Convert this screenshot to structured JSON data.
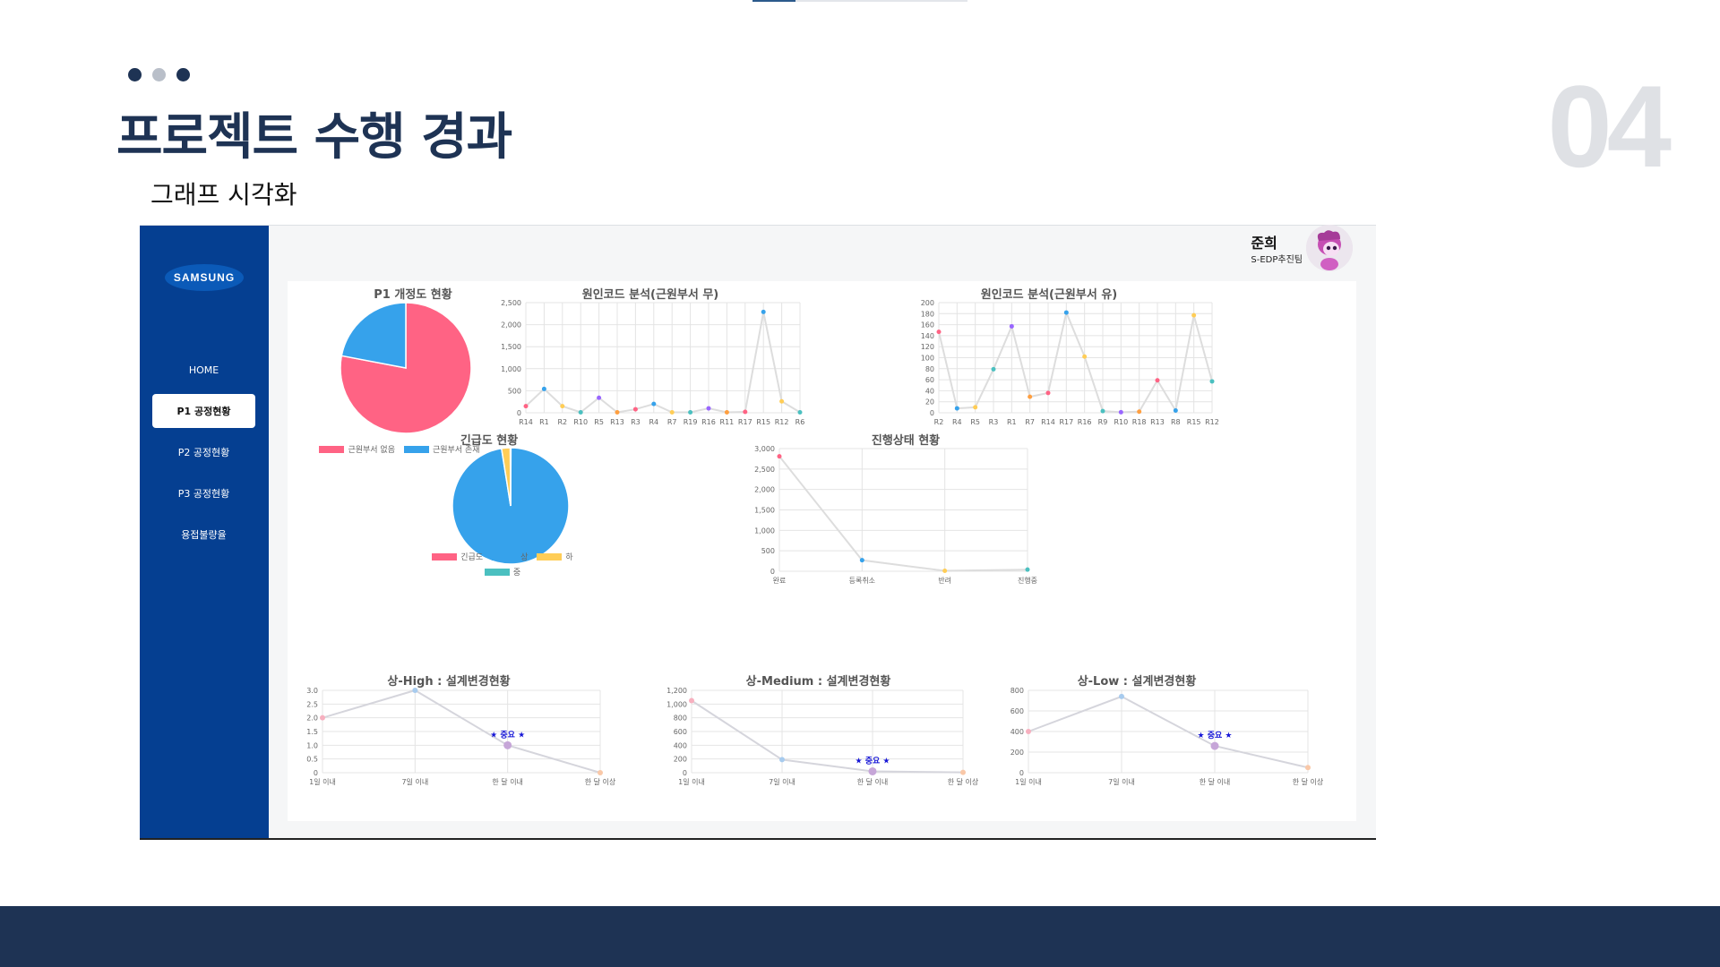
{
  "slide": {
    "title": "프로젝트 수행 경과",
    "subtitle": "그래프 시각화",
    "number": "04",
    "dot_colors": [
      "#1e3354",
      "#b9bfc9",
      "#1e3354"
    ]
  },
  "app": {
    "logo": "SAMSUNG",
    "nav": [
      "HOME",
      "P1 공정현황",
      "P2 공정현황",
      "P3 공정현황",
      "용접불량율"
    ],
    "active_nav": "P1 공정현황",
    "user": {
      "name": "준희",
      "team": "S-EDP추진팀"
    },
    "colors": {
      "sidebar": "#053f91",
      "pink": "#ff6384",
      "blue": "#36a2eb",
      "yellow": "#ffcd56",
      "teal": "#4bc0c0",
      "purple": "#9966ff",
      "orange": "#ff9f40"
    }
  },
  "chart_data": [
    {
      "id": "p1-revision",
      "type": "pie",
      "title": "P1 개정도 현황",
      "labels": [
        "근원부서 없음",
        "근원부서 존재"
      ],
      "values": [
        78,
        22
      ],
      "colors": [
        "#ff6384",
        "#36a2eb"
      ],
      "legend": "bottom"
    },
    {
      "id": "root-code-no",
      "type": "line",
      "title": "원인코드 분석(근원부서 무)",
      "categories": [
        "R14",
        "R1",
        "R2",
        "R10",
        "R5",
        "R13",
        "R3",
        "R4",
        "R7",
        "R19",
        "R16",
        "R11",
        "R17",
        "R15",
        "R12",
        "R6"
      ],
      "values": [
        150,
        540,
        150,
        10,
        340,
        10,
        80,
        200,
        10,
        10,
        100,
        10,
        20,
        2290,
        260,
        10
      ],
      "ylim": [
        0,
        2500
      ],
      "yticks": [
        "0",
        "500",
        "1,000",
        "1,500",
        "2,000",
        "2,500"
      ],
      "grid": true
    },
    {
      "id": "root-code-yes",
      "type": "line",
      "title": "원인코드 분석(근원부서 유)",
      "categories": [
        "R2",
        "R4",
        "R5",
        "R3",
        "R1",
        "R7",
        "R14",
        "R17",
        "R16",
        "R9",
        "R10",
        "R18",
        "R13",
        "R8",
        "R15",
        "R12"
      ],
      "values": [
        147,
        8,
        10,
        79,
        157,
        29,
        36,
        182,
        102,
        3,
        1,
        2,
        59,
        4,
        177,
        57
      ],
      "ylim": [
        0,
        200
      ],
      "yticks": [
        "0",
        "20",
        "40",
        "60",
        "80",
        "100",
        "120",
        "140",
        "160",
        "180",
        "200"
      ],
      "grid": true
    },
    {
      "id": "urgency",
      "type": "pie",
      "title": "긴급도 현황",
      "labels": [
        "긴급도",
        "상",
        "하",
        "중"
      ],
      "values": [
        0.1,
        97.4,
        2.4,
        0.1
      ],
      "colors": [
        "#ff6384",
        "#36a2eb",
        "#ffcd56",
        "#4bc0c0"
      ],
      "legend": "bottom"
    },
    {
      "id": "progress",
      "type": "line",
      "title": "진행상태 현황",
      "categories": [
        "완료",
        "등록취소",
        "반려",
        "진행중"
      ],
      "values": [
        2810,
        270,
        10,
        40
      ],
      "ylim": [
        0,
        3000
      ],
      "yticks": [
        "0",
        "500",
        "1,000",
        "1,500",
        "2,000",
        "2,500",
        "3,000"
      ],
      "grid": true
    },
    {
      "id": "high",
      "type": "line",
      "title": "상-High : 설계변경현황",
      "categories": [
        "1일 이내",
        "7일 이내",
        "한 달 이내",
        "한 달 이상"
      ],
      "values": [
        2,
        3,
        1,
        0
      ],
      "ylim": [
        0,
        3
      ],
      "yticks": [
        "0",
        "0.5",
        "1.0",
        "1.5",
        "2.0",
        "2.5",
        "3.0"
      ],
      "annotation": {
        "text": "★ 중요 ★",
        "at": "한 달 이내"
      }
    },
    {
      "id": "medium",
      "type": "line",
      "title": "상-Medium : 설계변경현황",
      "categories": [
        "1일 이내",
        "7일 이내",
        "한 달 이내",
        "한 달 이상"
      ],
      "values": [
        1050,
        190,
        20,
        5
      ],
      "ylim": [
        0,
        1200
      ],
      "yticks": [
        "0",
        "200",
        "400",
        "600",
        "800",
        "1,000",
        "1,200"
      ],
      "annotation": {
        "text": "★ 중요 ★",
        "at": "한 달 이내"
      }
    },
    {
      "id": "low",
      "type": "line",
      "title": "상-Low : 설계변경현황",
      "categories": [
        "1일 이내",
        "7일 이내",
        "한 달 이내",
        "한 달 이상"
      ],
      "values": [
        400,
        740,
        260,
        50
      ],
      "ylim": [
        0,
        800
      ],
      "yticks": [
        "0",
        "200",
        "400",
        "600",
        "800"
      ],
      "annotation": {
        "text": "★ 중요 ★",
        "at": "한 달 이내"
      }
    }
  ]
}
